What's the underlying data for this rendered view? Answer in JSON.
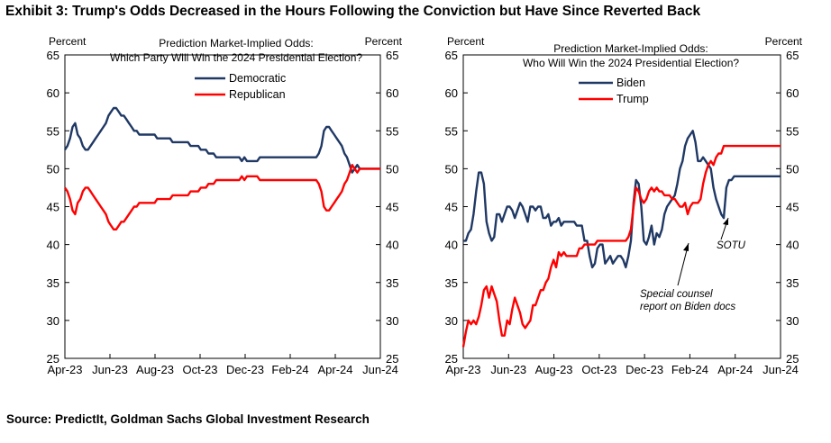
{
  "exhibit_title": "Exhibit 3: Trump's Odds Decreased in the Hours Following the Conviction but Have Since Reverted Back",
  "source": "Source: PredictIt, Goldman Sachs Global Investment Research",
  "colors": {
    "democratic": "#1f3864",
    "republican": "#ff0000",
    "axis": "#000000"
  },
  "chart_data": [
    {
      "type": "line",
      "title_lines": [
        "Prediction Market-Implied Odds:",
        "Which Party Will Win the 2024 Presidential Election?"
      ],
      "ylabel_left": "Percent",
      "ylabel_right": "Percent",
      "ylim": [
        25,
        65
      ],
      "yticks": [
        25,
        30,
        35,
        40,
        45,
        50,
        55,
        60,
        65
      ],
      "xticks": [
        "Apr-23",
        "Jun-23",
        "Aug-23",
        "Oct-23",
        "Dec-23",
        "Feb-24",
        "Apr-24",
        "Jun-24"
      ],
      "grid": false,
      "legend_position": "top-center",
      "x": [
        0,
        0.5,
        1,
        1.5,
        2,
        2.5,
        3,
        3.5,
        4,
        4.5,
        5,
        5.5,
        6,
        6.5,
        7,
        7.5,
        8,
        8.5,
        9,
        9.5,
        10,
        10.5,
        11,
        11.5,
        12,
        12.5,
        13,
        13.5,
        14,
        14.5,
        15,
        15.5,
        16,
        16.5,
        17,
        17.5,
        18,
        18.5,
        19,
        19.5,
        20,
        20.5,
        21,
        21.5,
        22,
        22.5,
        23,
        23.5,
        24,
        24.5,
        25,
        25.5,
        26,
        26.5,
        27,
        27.5,
        28,
        28.5,
        29,
        29.5,
        30,
        30.5,
        31,
        31.5,
        32,
        32.5,
        33,
        33.5,
        34,
        34.5,
        35,
        35.5,
        36,
        36.5,
        37,
        37.5,
        38,
        38.5,
        39,
        39.5,
        40,
        40.5,
        41,
        41.5,
        42,
        42.5,
        43,
        43.5,
        44,
        44.5,
        45,
        45.5,
        46,
        46.5,
        47,
        47.5,
        48,
        48.5,
        49,
        49.5,
        50,
        50.5,
        51,
        51.5,
        52,
        52.5,
        53,
        53.5,
        54,
        54.5,
        55,
        55.5,
        56,
        56.5,
        57,
        57.5,
        58,
        58.5,
        59,
        59.5,
        60,
        60.5,
        61,
        61.5
      ],
      "series": [
        {
          "name": "Democratic",
          "color": "#1f3864",
          "values": [
            52.5,
            53,
            54,
            55.5,
            56,
            54.5,
            54,
            53,
            52.5,
            52.5,
            53,
            53.5,
            54,
            54.5,
            55,
            55.5,
            56,
            57,
            57.5,
            58,
            58,
            57.5,
            57,
            57,
            56.5,
            56,
            55.5,
            55,
            55,
            54.5,
            54.5,
            54.5,
            54.5,
            54.5,
            54.5,
            54.5,
            54,
            54,
            54,
            54,
            54,
            54,
            53.5,
            53.5,
            53.5,
            53.5,
            53.5,
            53.5,
            53.5,
            53,
            53,
            53,
            53,
            52.5,
            52.5,
            52.5,
            52,
            52,
            52,
            51.5,
            51.5,
            51.5,
            51.5,
            51.5,
            51.5,
            51.5,
            51.5,
            51.5,
            51.5,
            51,
            51.5,
            51,
            51,
            51,
            51,
            51,
            51.5,
            51.5,
            51.5,
            51.5,
            51.5,
            51.5,
            51.5,
            51.5,
            51.5,
            51.5,
            51.5,
            51.5,
            51.5,
            51.5,
            51.5,
            51.5,
            51.5,
            51.5,
            51.5,
            51.5,
            51.5,
            51.5,
            51.5,
            52,
            53,
            55,
            55.5,
            55.5,
            55,
            54.5,
            54,
            53.5,
            53,
            52,
            51.5,
            50.5,
            49.5,
            50,
            50.5,
            50,
            50,
            50,
            50,
            50,
            50,
            50,
            50,
            50
          ]
        },
        {
          "name": "Republican",
          "color": "#ff0000",
          "values": [
            47.5,
            47,
            46,
            44.5,
            44,
            45.5,
            46,
            47,
            47.5,
            47.5,
            47,
            46.5,
            46,
            45.5,
            45,
            44.5,
            44,
            43,
            42.5,
            42,
            42,
            42.5,
            43,
            43,
            43.5,
            44,
            44.5,
            45,
            45,
            45.5,
            45.5,
            45.5,
            45.5,
            45.5,
            45.5,
            45.5,
            46,
            46,
            46,
            46,
            46,
            46,
            46.5,
            46.5,
            46.5,
            46.5,
            46.5,
            46.5,
            46.5,
            47,
            47,
            47,
            47,
            47.5,
            47.5,
            47.5,
            48,
            48,
            48,
            48.5,
            48.5,
            48.5,
            48.5,
            48.5,
            48.5,
            48.5,
            48.5,
            48.5,
            48.5,
            49,
            48.5,
            49,
            49,
            49,
            49,
            49,
            48.5,
            48.5,
            48.5,
            48.5,
            48.5,
            48.5,
            48.5,
            48.5,
            48.5,
            48.5,
            48.5,
            48.5,
            48.5,
            48.5,
            48.5,
            48.5,
            48.5,
            48.5,
            48.5,
            48.5,
            48.5,
            48.5,
            48.5,
            48,
            47,
            45,
            44.5,
            44.5,
            45,
            45.5,
            46,
            46.5,
            47,
            48,
            48.5,
            49.5,
            50.5,
            50,
            49.5,
            50,
            50,
            50,
            50,
            50,
            50,
            50,
            50,
            50
          ]
        }
      ]
    },
    {
      "type": "line",
      "title_lines": [
        "Prediction Market-Implied Odds:",
        "Who Will Win the 2024 Presidential Election?"
      ],
      "ylabel_left": "Percent",
      "ylabel_right": "Percent",
      "ylim": [
        25,
        65
      ],
      "yticks": [
        25,
        30,
        35,
        40,
        45,
        50,
        55,
        60,
        65
      ],
      "xticks": [
        "Apr-23",
        "Jun-23",
        "Aug-23",
        "Oct-23",
        "Dec-23",
        "Feb-24",
        "Apr-24",
        "Jun-24"
      ],
      "grid": false,
      "legend_position": "top-left",
      "annotations": [
        {
          "lines": [
            "SOTU"
          ],
          "x": 0.7,
          "y": 42
        },
        {
          "lines": [
            "Special counsel",
            "report on Biden docs"
          ],
          "x": 0.5,
          "y": 33
        }
      ],
      "x": [
        0,
        0.5,
        1,
        1.5,
        2,
        2.5,
        3,
        3.5,
        4,
        4.5,
        5,
        5.5,
        6,
        6.5,
        7,
        7.5,
        8,
        8.5,
        9,
        9.5,
        10,
        10.5,
        11,
        11.5,
        12,
        12.5,
        13,
        13.5,
        14,
        14.5,
        15,
        15.5,
        16,
        16.5,
        17,
        17.5,
        18,
        18.5,
        19,
        19.5,
        20,
        20.5,
        21,
        21.5,
        22,
        22.5,
        23,
        23.5,
        24,
        24.5,
        25,
        25.5,
        26,
        26.5,
        27,
        27.5,
        28,
        28.5,
        29,
        29.5,
        30,
        30.5,
        31,
        31.5,
        32,
        32.5,
        33,
        33.5,
        34,
        34.5,
        35,
        35.5,
        36,
        36.5,
        37,
        37.5,
        38,
        38.5,
        39,
        39.5,
        40,
        40.5,
        41,
        41.5,
        42,
        42.5,
        43,
        43.5,
        44,
        44.5,
        45,
        45.5,
        46,
        46.5,
        47,
        47.5,
        48,
        48.5,
        49,
        49.5,
        50,
        50.5,
        51,
        51.5,
        52,
        52.5,
        53,
        53.5,
        54,
        54.5,
        55,
        55.5,
        56,
        56.5,
        57,
        57.5,
        58,
        58.5,
        59,
        59.5,
        60,
        60.5,
        61,
        61.5
      ],
      "series": [
        {
          "name": "Biden",
          "color": "#1f3864",
          "values": [
            40.5,
            40.5,
            41.5,
            42,
            44,
            47,
            49.5,
            49.5,
            48,
            43,
            41.5,
            40.5,
            41,
            44,
            44,
            43,
            44,
            45,
            45,
            44.5,
            43.5,
            44.5,
            45.5,
            45,
            44,
            43,
            45,
            45,
            44.5,
            45,
            45,
            43.5,
            43.5,
            44,
            42.5,
            43,
            43,
            43.5,
            42.5,
            43,
            43,
            43,
            43,
            43,
            42.5,
            42.5,
            42.5,
            40.5,
            40.5,
            38.5,
            37,
            37.5,
            39.5,
            40,
            40,
            37.5,
            38,
            38.5,
            37.5,
            38,
            38.5,
            38.5,
            38,
            37,
            38.5,
            40.5,
            45.5,
            48.5,
            48,
            45,
            40.5,
            40,
            41,
            42.5,
            40,
            41.5,
            41,
            42,
            44,
            45,
            45.5,
            46,
            46.5,
            48,
            50,
            51,
            53,
            54,
            54.5,
            55,
            53.5,
            51,
            51,
            51.5,
            51,
            50.5,
            50,
            47.5,
            46,
            45,
            44,
            43.5,
            47.5,
            48.5,
            48.5,
            49,
            49,
            49,
            49,
            49,
            49,
            49,
            49,
            49,
            49,
            49,
            49,
            49,
            49,
            49,
            49,
            49,
            49,
            49
          ]
        },
        {
          "name": "Trump",
          "color": "#ff0000",
          "values": [
            26.5,
            28.5,
            30,
            29.5,
            30,
            29.5,
            30.5,
            32,
            34,
            34.5,
            33,
            34.5,
            33.5,
            32.5,
            30,
            28,
            28,
            30,
            29.5,
            31.5,
            33,
            32,
            31,
            29.5,
            29,
            29.5,
            30,
            32,
            32,
            33,
            34,
            34,
            35,
            35.5,
            37,
            38,
            37,
            39,
            38.5,
            39,
            38.5,
            38.5,
            38.5,
            38.5,
            38.5,
            39.5,
            39.5,
            40,
            40,
            40,
            40,
            40,
            40.5,
            40.5,
            40.5,
            40.5,
            40.5,
            40.5,
            40.5,
            40.5,
            40.5,
            40.5,
            40.5,
            40.5,
            41,
            42,
            45,
            47.5,
            47,
            46,
            45.5,
            46,
            47,
            47.5,
            47,
            47.5,
            47,
            47,
            46.5,
            46.5,
            46.5,
            46,
            46,
            45.5,
            45,
            45,
            45.5,
            44,
            45,
            45.5,
            45.5,
            45.5,
            46,
            48,
            49.5,
            50.5,
            51,
            50.5,
            51.5,
            52,
            52,
            53,
            53,
            53,
            53,
            53,
            53,
            53,
            53,
            53,
            53,
            53,
            53,
            53,
            53,
            53,
            53,
            53,
            53,
            53,
            53,
            53,
            53,
            53
          ]
        }
      ]
    }
  ]
}
